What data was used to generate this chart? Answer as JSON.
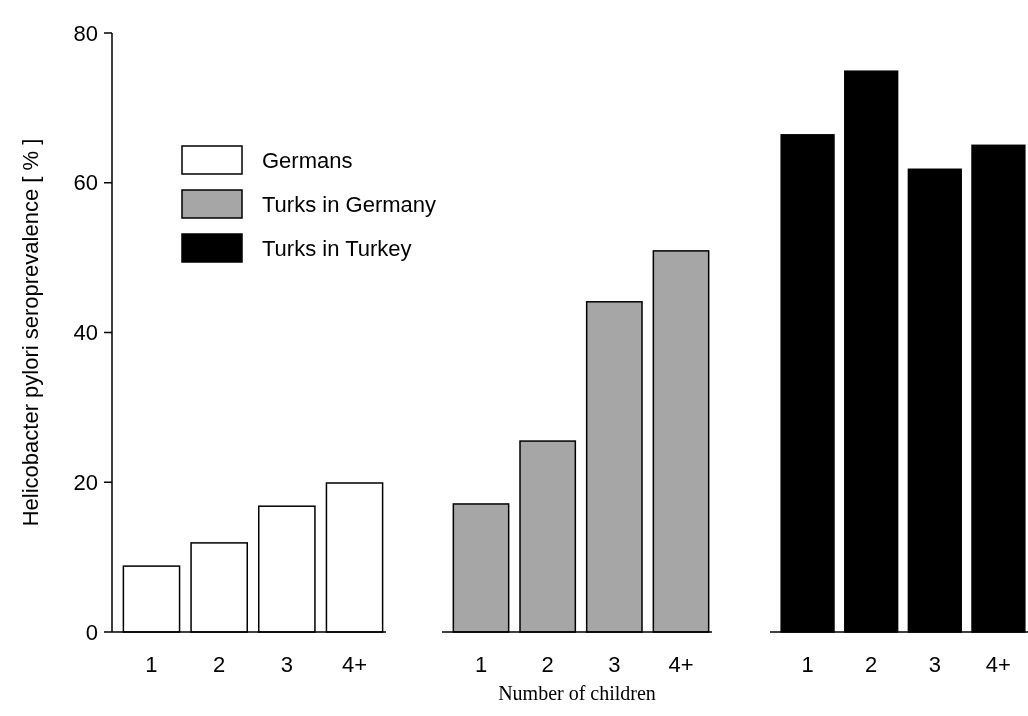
{
  "chart_data": [
    {
      "type": "bar",
      "ylabel": "Helicobacter pylori seroprevalence [ % ]",
      "categories": [
        "1",
        "2",
        "3",
        "4+"
      ],
      "ylim": [
        0,
        80
      ],
      "yticks": [
        0,
        20,
        40,
        60,
        80
      ],
      "legend": "top",
      "series": [
        {
          "name": "Germans",
          "color": "#ffffff",
          "values": [
            8.8,
            11.9,
            16.8,
            19.9
          ]
        }
      ]
    },
    {
      "type": "bar",
      "xlabel": "Number of children",
      "categories": [
        "1",
        "2",
        "3",
        "4+"
      ],
      "ylim": [
        0,
        80
      ],
      "yticks": [
        0,
        20,
        40,
        60,
        80
      ],
      "tick_labels": "x",
      "series": [
        {
          "name": "Turks in Germany",
          "color": "#a6a6a6",
          "values": [
            17.1,
            25.5,
            44.1,
            50.9
          ]
        }
      ]
    },
    {
      "type": "bar",
      "categories": [
        "1",
        "2",
        "3",
        "4+"
      ],
      "ylim": [
        0,
        80
      ],
      "yticks": [
        0,
        20,
        40,
        60,
        80
      ],
      "tick_labels": "x",
      "series": [
        {
          "name": "Turks in Turkey",
          "color": "#000000",
          "values": [
            66.4,
            74.9,
            61.8,
            65.0
          ]
        }
      ]
    }
  ]
}
